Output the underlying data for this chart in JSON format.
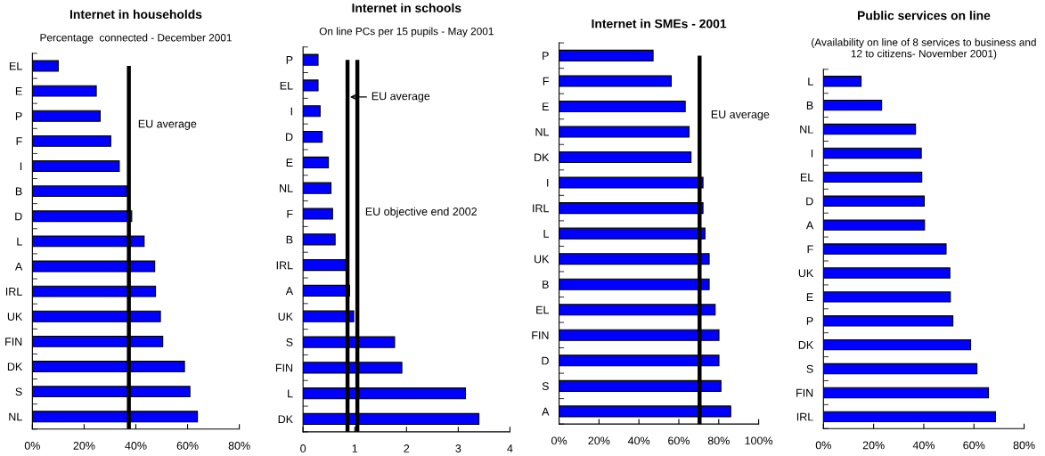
{
  "chart_data": [
    {
      "type": "bar",
      "orientation": "horizontal",
      "title": "Internet in households",
      "subtitle": "Percentage  connected - December 2001",
      "categories": [
        "EL",
        "E",
        "P",
        "F",
        "I",
        "B",
        "D",
        "L",
        "A",
        "IRL",
        "UK",
        "FIN",
        "DK",
        "S",
        "NL"
      ],
      "values": [
        10,
        24.7,
        26.2,
        30.3,
        33.6,
        36.5,
        38.4,
        43.2,
        47.3,
        47.6,
        49.5,
        50.4,
        58.8,
        60.9,
        63.8
      ],
      "color": "#0000ff",
      "xlim": [
        0,
        80
      ],
      "xticks": [
        {
          "value": 0,
          "label": "0%"
        },
        {
          "value": 20,
          "label": "20%"
        },
        {
          "value": 40,
          "label": "40%"
        },
        {
          "value": 60,
          "label": "60%"
        },
        {
          "value": 80,
          "label": "80%"
        }
      ],
      "ref_lines": [
        {
          "axis": "x",
          "value": 37.3,
          "label": "EU average",
          "color": "#000000"
        }
      ]
    },
    {
      "type": "bar",
      "orientation": "horizontal",
      "title": "Internet in schools",
      "subtitle": "On line PCs per 15 pupils - May 2001",
      "categories": [
        "P",
        "EL",
        "I",
        "D",
        "E",
        "NL",
        "F",
        "B",
        "IRL",
        "A",
        "UK",
        "S",
        "FIN",
        "L",
        "DK"
      ],
      "values": [
        0.29,
        0.29,
        0.33,
        0.37,
        0.49,
        0.54,
        0.57,
        0.62,
        0.82,
        0.9,
        0.98,
        1.77,
        1.91,
        3.14,
        3.4
      ],
      "color": "#0000ff",
      "xlim": [
        0,
        4
      ],
      "xticks": [
        0,
        1,
        2,
        3,
        4
      ],
      "ref_lines": [
        {
          "axis": "x",
          "value": 0.86,
          "label": "EU average",
          "color": "#000000"
        },
        {
          "axis": "x",
          "value": 1.05,
          "label": "EU objective end 2002",
          "color": "#000000"
        }
      ]
    },
    {
      "type": "bar",
      "orientation": "horizontal",
      "title": "Internet in SMEs - 2001",
      "categories": [
        "P",
        "F",
        "E",
        "NL",
        "DK",
        "I",
        "IRL",
        "L",
        "UK",
        "B",
        "EL",
        "FIN",
        "D",
        "S",
        "A"
      ],
      "values": [
        47.1,
        56.2,
        63.2,
        65.1,
        66.1,
        72.1,
        72.1,
        73.1,
        75.2,
        75.2,
        78.2,
        80.1,
        80.1,
        81.1,
        86
      ],
      "color": "#0000ff",
      "xlim": [
        0,
        100
      ],
      "xticks": [
        {
          "value": 0,
          "label": "0%"
        },
        {
          "value": 20,
          "label": "20%"
        },
        {
          "value": 40,
          "label": "40%"
        },
        {
          "value": 60,
          "label": "60%"
        },
        {
          "value": 80,
          "label": "80%"
        },
        {
          "value": 100,
          "label": "100%"
        }
      ],
      "ref_lines": [
        {
          "axis": "x",
          "value": 70.4,
          "label": "EU average",
          "color": "#000000"
        }
      ]
    },
    {
      "type": "bar",
      "orientation": "horizontal",
      "title": "Public services on line",
      "subtitle": "(Availability on line of 8 services to business and\n12 to citizens- November 2001)",
      "categories": [
        "L",
        "B",
        "NL",
        "I",
        "EL",
        "D",
        "A",
        "F",
        "UK",
        "E",
        "P",
        "DK",
        "S",
        "FIN",
        "IRL"
      ],
      "values": [
        15,
        23.2,
        36.7,
        39,
        39.2,
        40.2,
        40.3,
        48.9,
        50.4,
        50.6,
        51.6,
        58.7,
        61.2,
        65.8,
        68.6
      ],
      "color": "#0000ff",
      "xlim": [
        0,
        80
      ],
      "xticks": [
        {
          "value": 0,
          "label": "0%"
        },
        {
          "value": 20,
          "label": "20%"
        },
        {
          "value": 40,
          "label": "40%"
        },
        {
          "value": 60,
          "label": "60%"
        },
        {
          "value": 80,
          "label": "80%"
        }
      ]
    }
  ]
}
